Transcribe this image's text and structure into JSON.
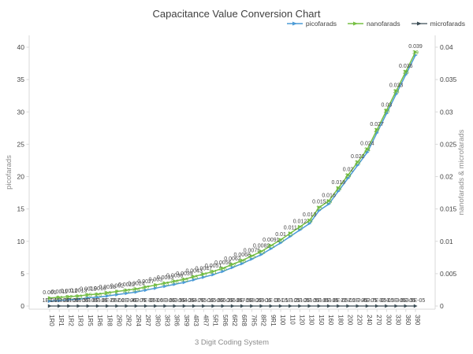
{
  "title": "Capacitance Value Conversion Chart",
  "axes": {
    "left": {
      "title": "picofarads",
      "ticks": [
        "0",
        "5",
        "10",
        "15",
        "20",
        "25",
        "30",
        "35",
        "40"
      ]
    },
    "right": {
      "title": "nanofarads & microfarads",
      "ticks": [
        "0",
        "0.005",
        "0.01",
        "0.015",
        "0.02",
        "0.025",
        "0.03",
        "0.035",
        "0.04"
      ]
    },
    "bottom": {
      "title": "3 Digit Coding System"
    }
  },
  "colors": {
    "picofarads": "#4c9bd6",
    "nanofarads": "#77c043",
    "microfarads": "#3c4e56",
    "pf_label": "#63ad3a",
    "dark_label": "#444444",
    "axis_text": "#444444",
    "axis_title": "#8c8c8c",
    "spine": "#d9d9d9"
  },
  "chart_data": {
    "type": "line",
    "title": "Capacitance Value Conversion Chart",
    "xlabel": "3 Digit Coding System",
    "ylabel_left": "picofarads",
    "ylabel_right": "nanofarads & microfarads",
    "ylim_left": [
      0,
      40
    ],
    "ylim_right": [
      0,
      0.04
    ],
    "grid": false,
    "legend_position": "top-right",
    "categories": [
      "1R0",
      "1R1",
      "1R2",
      "1R3",
      "1R5",
      "1R6",
      "1R8",
      "2R0",
      "2R2",
      "2R4",
      "2R7",
      "3R0",
      "3R3",
      "3R6",
      "3R9",
      "4R3",
      "4R7",
      "5R1",
      "5R6",
      "6R2",
      "6R8",
      "7R5",
      "8R2",
      "9R1",
      "100",
      "110",
      "120",
      "130",
      "150",
      "160",
      "180",
      "200",
      "220",
      "240",
      "270",
      "300",
      "330",
      "360",
      "390"
    ],
    "series": [
      {
        "name": "picofarads",
        "axis": "left",
        "color": "#4c9bd6",
        "label_color": "#63ad3a",
        "values": [
          1,
          1.1,
          1.2,
          1.3,
          1.5,
          1.6,
          1.8,
          2,
          2.2,
          2.4,
          2.7,
          3,
          3.3,
          3.6,
          3.9,
          4.3,
          4.7,
          5.1,
          5.6,
          6.2,
          6.8,
          7.5,
          8.2,
          9.1,
          10,
          11,
          12,
          13,
          15,
          16,
          18,
          20,
          22,
          24,
          27,
          30,
          33,
          36,
          39
        ],
        "labels": [
          "1",
          "1.1",
          "1.2",
          "1.3",
          "1.5",
          "1.6",
          "1.8",
          "2",
          "2.2",
          "2.4",
          "2.7",
          "3",
          "3.3",
          "3.6",
          "3.9",
          "4.3",
          "4.7",
          "5.1",
          "5.6",
          "6.2",
          "6.8",
          "7.5",
          "8.2",
          "9.1",
          "10",
          "11",
          "12",
          "13",
          "15",
          "16",
          "18",
          "20",
          "22",
          "24",
          "27",
          "30",
          "33",
          "36",
          "39"
        ]
      },
      {
        "name": "nanofarads",
        "axis": "right",
        "color": "#77c043",
        "label_color": "#444444",
        "values": [
          0.001,
          0.0011,
          0.0012,
          0.0013,
          0.0015,
          0.0016,
          0.0018,
          0.002,
          0.0022,
          0.0024,
          0.0027,
          0.003,
          0.0033,
          0.0036,
          0.0039,
          0.0043,
          0.0047,
          0.0051,
          0.0056,
          0.0062,
          0.0068,
          0.0075,
          0.0082,
          0.0091,
          0.01,
          0.011,
          0.012,
          0.013,
          0.015,
          0.016,
          0.018,
          0.02,
          0.022,
          0.024,
          0.027,
          0.03,
          0.033,
          0.036,
          0.039
        ],
        "labels": [
          "0.001",
          "0.0011",
          "0.0012",
          "0.0013",
          "0.0015",
          "0.0016",
          "0.0018",
          "0.002",
          "0.0022",
          "0.0024",
          "0.0027",
          "0.003",
          "0.0033",
          "0.0036",
          "0.0039",
          "0.0043",
          "0.0047",
          "0.0051",
          "0.0056",
          "0.0062",
          "0.0068",
          "0.0075",
          "0.0082",
          "0.0091",
          "0.01",
          "0.011",
          "0.012",
          "0.013",
          "0.015",
          "0.016",
          "0.018",
          "0.02",
          "0.022",
          "0.024",
          "0.027",
          "0.03",
          "0.033",
          "0.036",
          "0.039"
        ]
      },
      {
        "name": "microfarads",
        "axis": "right",
        "color": "#3c4e56",
        "label_color": "#444444",
        "values": [
          1e-06,
          1.1e-06,
          1.2e-06,
          1.3e-06,
          1.5e-06,
          1.6e-06,
          1.8e-06,
          2e-06,
          2.2e-06,
          2.4e-06,
          2.7e-06,
          3e-06,
          3.3e-06,
          3.6e-06,
          3.9e-06,
          4.3e-06,
          4.7e-06,
          5.1e-06,
          5.6e-06,
          6.2e-06,
          6.8e-06,
          7.5e-06,
          8.2e-06,
          9.1e-06,
          1e-05,
          1.1e-05,
          1.2e-05,
          1.3e-05,
          1.5e-05,
          1.6e-05,
          1.8e-05,
          2e-05,
          2.2e-05,
          2.4e-05,
          2.7e-05,
          3e-05,
          3.3e-05,
          3.6e-05,
          3.9e-05
        ],
        "labels": [
          "1E-06",
          "1.1E-06",
          "1.2E-06",
          "1.3E-06",
          "1.5E-06",
          "1.6E-06",
          "1.8E-06",
          "2E-06",
          "2.2E-06",
          "2.4E-06",
          "2.7E-06",
          "3E-06",
          "3.3E-06",
          "3.6E-06",
          "3.9E-06",
          "4.3E-06",
          "4.7E-06",
          "5.1E-06",
          "5.6E-06",
          "6.2E-06",
          "6.8E-06",
          "7.5E-06",
          "8.2E-06",
          "9.1E-06",
          "1E-05",
          "1.1E-05",
          "1.2E-05",
          "1.3E-05",
          "1.5E-05",
          "1.6E-05",
          "1.8E-05",
          "2E-05",
          "2.2E-05",
          "2.4E-05",
          "2.7E-05",
          "3E-05",
          "3.3E-05",
          "3.6E-05",
          "3.9E-05"
        ]
      }
    ]
  }
}
